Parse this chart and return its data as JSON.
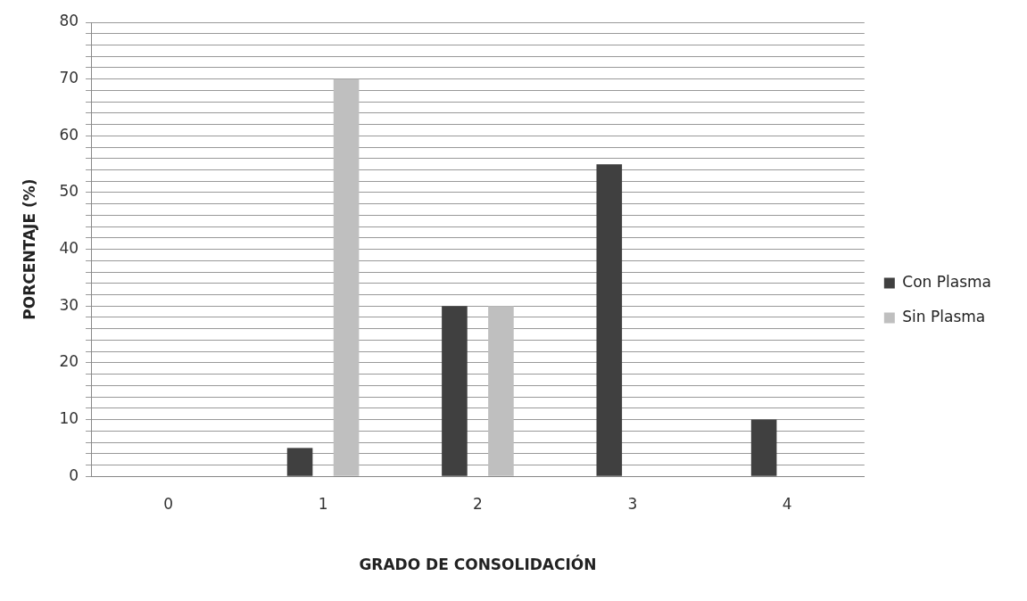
{
  "chart_data": {
    "type": "bar",
    "xlabel": "GRADO DE CONSOLIDACIÓN",
    "ylabel": "PORCENTAJE (%)",
    "categories": [
      "0",
      "1",
      "2",
      "3",
      "4"
    ],
    "series": [
      {
        "name": "Con Plasma",
        "color": "#404040",
        "values": [
          0,
          5,
          30,
          55,
          10
        ]
      },
      {
        "name": "Sin Plasma",
        "color": "#bfbfbf",
        "values": [
          0,
          70,
          30,
          0,
          0
        ]
      }
    ],
    "ylim": [
      0,
      80
    ],
    "yticks": [
      0,
      {
        "value": 2,
        "label": null
      },
      {
        "value": 4,
        "label": null
      },
      {
        "value": 6,
        "label": null
      },
      {
        "value": 8,
        "label": null
      },
      10,
      {
        "value": 12,
        "label": null
      },
      {
        "value": 14,
        "label": null
      },
      {
        "value": 16,
        "label": null
      },
      {
        "value": 18,
        "label": null
      },
      20,
      {
        "value": 22,
        "label": null
      },
      {
        "value": 24,
        "label": null
      },
      {
        "value": 26,
        "label": null
      },
      {
        "value": 28,
        "label": null
      },
      30,
      {
        "value": 32,
        "label": null
      },
      {
        "value": 34,
        "label": null
      },
      {
        "value": 36,
        "label": null
      },
      {
        "value": 38,
        "label": null
      },
      40,
      {
        "value": 42,
        "label": null
      },
      {
        "value": 44,
        "label": null
      },
      {
        "value": 46,
        "label": null
      },
      {
        "value": 48,
        "label": null
      },
      50,
      {
        "value": 52,
        "label": null
      },
      {
        "value": 54,
        "label": null
      },
      {
        "value": 56,
        "label": null
      },
      {
        "value": 58,
        "label": null
      },
      60,
      {
        "value": 62,
        "label": null
      },
      {
        "value": 64,
        "label": null
      },
      {
        "value": 66,
        "label": null
      },
      {
        "value": 68,
        "label": null
      },
      70,
      {
        "value": 72,
        "label": null
      },
      {
        "value": 74,
        "label": null
      },
      {
        "value": 76,
        "label": null
      },
      {
        "value": 78,
        "label": null
      },
      80
    ],
    "grid": "y",
    "legend": "right"
  }
}
